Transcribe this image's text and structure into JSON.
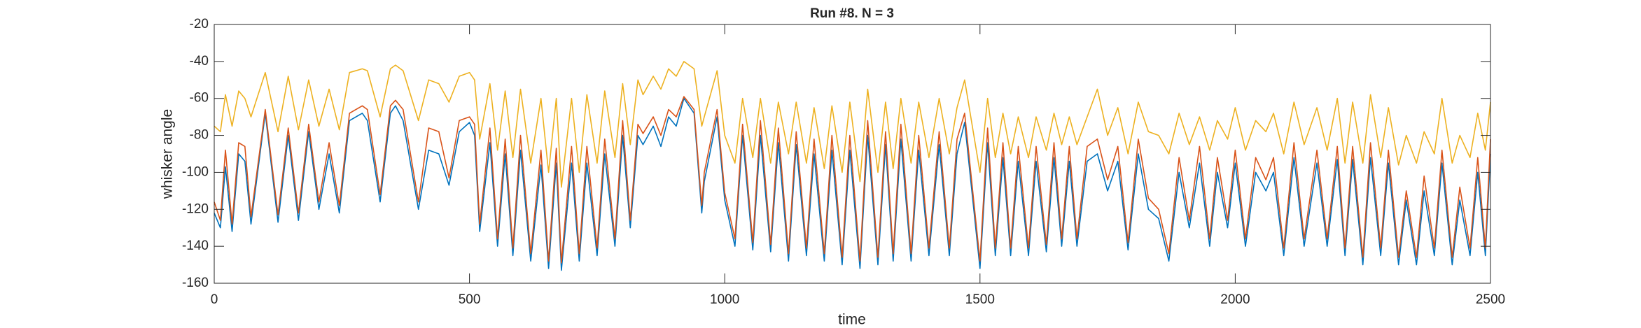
{
  "chart_data": {
    "type": "line",
    "title": "Run #8. N = 3",
    "x_label": "time",
    "y_label": "whisker angle",
    "xlim": [
      0,
      2500
    ],
    "xticks": [
      0,
      500,
      1000,
      1500,
      2000,
      2500
    ],
    "ylim": [
      -160,
      -20
    ],
    "yticks": [
      -160,
      -140,
      -120,
      -100,
      -80,
      -60,
      -40,
      -20
    ],
    "x": [
      0,
      12,
      22,
      35,
      48,
      60,
      72,
      100,
      125,
      145,
      165,
      185,
      205,
      225,
      245,
      265,
      290,
      300,
      325,
      345,
      355,
      370,
      400,
      420,
      440,
      460,
      480,
      500,
      510,
      520,
      540,
      555,
      570,
      585,
      600,
      620,
      640,
      655,
      670,
      680,
      700,
      715,
      730,
      750,
      765,
      785,
      800,
      815,
      830,
      840,
      860,
      875,
      890,
      905,
      920,
      940,
      955,
      960,
      985,
      1000,
      1020,
      1035,
      1055,
      1070,
      1090,
      1105,
      1125,
      1140,
      1160,
      1175,
      1195,
      1210,
      1230,
      1245,
      1265,
      1280,
      1300,
      1315,
      1330,
      1345,
      1365,
      1380,
      1400,
      1420,
      1440,
      1455,
      1470,
      1500,
      1515,
      1530,
      1545,
      1560,
      1575,
      1595,
      1610,
      1630,
      1645,
      1660,
      1675,
      1690,
      1710,
      1730,
      1750,
      1770,
      1790,
      1810,
      1830,
      1850,
      1870,
      1890,
      1910,
      1930,
      1950,
      1965,
      1985,
      2000,
      2020,
      2040,
      2060,
      2075,
      2095,
      2115,
      2135,
      2160,
      2180,
      2200,
      2215,
      2230,
      2250,
      2265,
      2285,
      2300,
      2320,
      2335,
      2355,
      2370,
      2390,
      2405,
      2425,
      2440,
      2460,
      2475,
      2490,
      2500
    ],
    "series": [
      {
        "color": "#0072BD",
        "values": [
          -122,
          -130,
          -97,
          -132,
          -90,
          -94,
          -128,
          -68,
          -127,
          -80,
          -126,
          -78,
          -120,
          -90,
          -122,
          -72,
          -68,
          -72,
          -116,
          -68,
          -64,
          -72,
          -120,
          -88,
          -90,
          -107,
          -78,
          -73,
          -80,
          -132,
          -84,
          -140,
          -90,
          -145,
          -88,
          -148,
          -96,
          -152,
          -95,
          -153,
          -95,
          -148,
          -95,
          -145,
          -90,
          -140,
          -80,
          -130,
          -80,
          -85,
          -75,
          -86,
          -70,
          -75,
          -60,
          -68,
          -122,
          -105,
          -70,
          -115,
          -140,
          -80,
          -142,
          -80,
          -143,
          -84,
          -148,
          -85,
          -145,
          -90,
          -148,
          -88,
          -150,
          -88,
          -152,
          -80,
          -150,
          -85,
          -148,
          -82,
          -148,
          -88,
          -145,
          -85,
          -145,
          -90,
          -73,
          -152,
          -84,
          -145,
          -92,
          -145,
          -94,
          -145,
          -94,
          -143,
          -92,
          -140,
          -94,
          -140,
          -94,
          -90,
          -110,
          -94,
          -142,
          -90,
          -120,
          -125,
          -148,
          -100,
          -130,
          -95,
          -140,
          -100,
          -130,
          -95,
          -140,
          -100,
          -110,
          -100,
          -145,
          -92,
          -140,
          -95,
          -140,
          -93,
          -145,
          -93,
          -150,
          -92,
          -145,
          -95,
          -150,
          -115,
          -150,
          -110,
          -145,
          -95,
          -150,
          -115,
          -145,
          -100,
          -145,
          -90
        ]
      },
      {
        "color": "#D95319",
        "values": [
          -116,
          -126,
          -88,
          -128,
          -84,
          -86,
          -124,
          -66,
          -123,
          -76,
          -122,
          -74,
          -116,
          -84,
          -118,
          -68,
          -64,
          -66,
          -112,
          -64,
          -61,
          -66,
          -116,
          -76,
          -78,
          -103,
          -72,
          -70,
          -74,
          -128,
          -76,
          -136,
          -82,
          -141,
          -80,
          -144,
          -88,
          -148,
          -87,
          -149,
          -86,
          -144,
          -86,
          -141,
          -82,
          -136,
          -72,
          -126,
          -74,
          -79,
          -70,
          -80,
          -66,
          -70,
          -59,
          -66,
          -118,
          -100,
          -66,
          -111,
          -136,
          -74,
          -138,
          -72,
          -139,
          -76,
          -144,
          -78,
          -141,
          -82,
          -144,
          -80,
          -146,
          -80,
          -148,
          -72,
          -146,
          -78,
          -144,
          -74,
          -144,
          -80,
          -141,
          -78,
          -141,
          -82,
          -68,
          -148,
          -76,
          -141,
          -84,
          -141,
          -86,
          -141,
          -86,
          -139,
          -84,
          -136,
          -86,
          -136,
          -86,
          -82,
          -104,
          -86,
          -138,
          -82,
          -114,
          -120,
          -144,
          -92,
          -126,
          -86,
          -136,
          -92,
          -126,
          -88,
          -136,
          -92,
          -104,
          -92,
          -141,
          -84,
          -136,
          -88,
          -136,
          -86,
          -141,
          -86,
          -146,
          -84,
          -141,
          -88,
          -146,
          -110,
          -146,
          -102,
          -141,
          -88,
          -146,
          -108,
          -141,
          -92,
          -141,
          -82
        ]
      },
      {
        "color": "#EDB120",
        "values": [
          -75,
          -78,
          -58,
          -75,
          -56,
          -60,
          -70,
          -46,
          -78,
          -48,
          -77,
          -50,
          -75,
          -55,
          -77,
          -46,
          -44,
          -45,
          -70,
          -44,
          -42,
          -45,
          -72,
          -50,
          -52,
          -62,
          -48,
          -46,
          -50,
          -82,
          -52,
          -88,
          -56,
          -92,
          -55,
          -95,
          -60,
          -100,
          -60,
          -108,
          -60,
          -100,
          -58,
          -95,
          -56,
          -92,
          -52,
          -85,
          -50,
          -58,
          -48,
          -55,
          -44,
          -48,
          -40,
          -44,
          -75,
          -70,
          -45,
          -80,
          -95,
          -60,
          -92,
          -60,
          -95,
          -62,
          -90,
          -62,
          -95,
          -65,
          -98,
          -64,
          -100,
          -62,
          -105,
          -55,
          -100,
          -62,
          -98,
          -60,
          -95,
          -62,
          -92,
          -60,
          -90,
          -65,
          -50,
          -100,
          -60,
          -92,
          -68,
          -90,
          -70,
          -92,
          -70,
          -88,
          -68,
          -85,
          -70,
          -85,
          -70,
          -55,
          -80,
          -65,
          -90,
          -62,
          -78,
          -80,
          -90,
          -68,
          -85,
          -70,
          -88,
          -72,
          -82,
          -65,
          -88,
          -72,
          -78,
          -68,
          -90,
          -62,
          -85,
          -65,
          -88,
          -60,
          -95,
          -62,
          -95,
          -58,
          -92,
          -65,
          -96,
          -80,
          -95,
          -78,
          -90,
          -60,
          -95,
          -80,
          -92,
          -68,
          -88,
          -62
        ]
      }
    ]
  }
}
